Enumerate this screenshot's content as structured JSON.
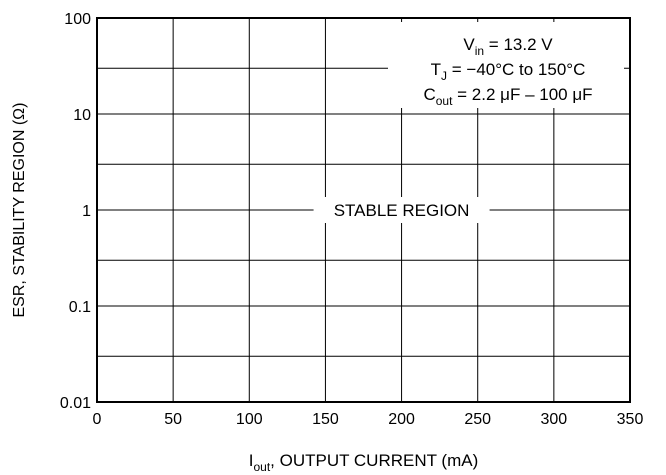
{
  "chart_data": {
    "type": "line",
    "xlabel_main": "I",
    "xlabel_sub": "out",
    "xlabel_rest": ", OUTPUT CURRENT (mA)",
    "ylabel": "ESR, STABILITY REGION (Ω)",
    "xlim": [
      0,
      350
    ],
    "ylim": [
      0.01,
      100
    ],
    "y_scale": "log",
    "x_ticks": [
      "0",
      "50",
      "100",
      "150",
      "200",
      "250",
      "300",
      "350"
    ],
    "x_tick_values": [
      0,
      50,
      100,
      150,
      200,
      250,
      300,
      350
    ],
    "y_ticks": [
      "0.01",
      "0.1",
      "1",
      "10",
      "100"
    ],
    "y_tick_values": [
      0.01,
      0.1,
      1,
      10,
      100
    ],
    "y_minor_grid": [
      0.03,
      0.3,
      3,
      30
    ],
    "grid": true,
    "region_label": "STABLE REGION",
    "region_label_y": 1,
    "annotations": [
      {
        "main": "V",
        "sub": "in",
        "rest": " = 13.2 V"
      },
      {
        "main": "T",
        "sub": "J",
        "rest": " = −40°C to 150°C"
      },
      {
        "main": "C",
        "sub": "out",
        "rest": " = 2.2 μF – 100 μF"
      }
    ]
  }
}
